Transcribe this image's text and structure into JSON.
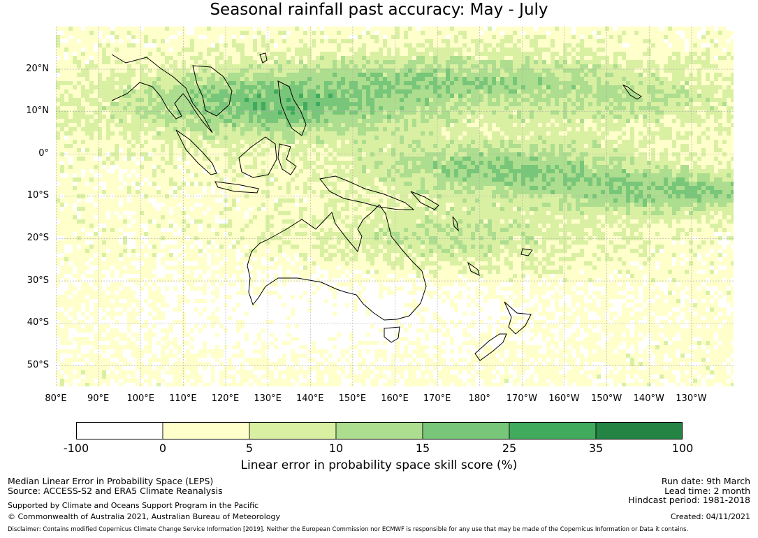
{
  "title": "Seasonal rainfall past accuracy: May - July",
  "map": {
    "lat_labels": [
      "20°N",
      "10°N",
      "0°",
      "10°S",
      "20°S",
      "30°S",
      "40°S",
      "50°S"
    ],
    "lat_values": [
      20,
      10,
      0,
      -10,
      -20,
      -30,
      -40,
      -50
    ],
    "lon_labels": [
      "80°E",
      "90°E",
      "100°E",
      "110°E",
      "120°E",
      "130°E",
      "140°E",
      "150°E",
      "160°E",
      "170°E",
      "180°",
      "170°W",
      "160°W",
      "150°W",
      "140°W",
      "130°W"
    ],
    "lon_values": [
      80,
      90,
      100,
      110,
      120,
      130,
      140,
      150,
      160,
      170,
      180,
      190,
      200,
      210,
      220,
      230
    ],
    "lon_range": [
      80,
      240
    ],
    "lat_range": [
      -55,
      30
    ]
  },
  "colorbar": {
    "ticks": [
      "-100",
      "0",
      "5",
      "10",
      "15",
      "25",
      "35",
      "100"
    ],
    "colors": [
      "#ffffff",
      "#ffffcc",
      "#d9f0a3",
      "#addd8e",
      "#78c679",
      "#41ab5d",
      "#238443"
    ],
    "label": "Linear error in probability space skill score (%)"
  },
  "footer": {
    "left_1": "Median Linear Error in Probability Space (LEPS)",
    "left_2": "Source: ACCESS-S2 and ERA5 Climate Reanalysis",
    "left_3": "Supported by Climate and Oceans Support Program in the Pacific",
    "left_4": "© Commonwealth of Australia 2021, Australian Bureau of Meteorology",
    "right_1": "Run date: 9th March",
    "right_2": "Lead time: 2 month",
    "right_3": "Hindcast period: 1981-2018",
    "right_4": "Created: 04/11/2021",
    "disclaimer": "Disclaimer: Contains modified Copernicus Climate Change Service Information [2019]. Neither the European Commission nor ECMWF is responsible for any use that may be made of the Copernicus Information or Data it contains."
  }
}
